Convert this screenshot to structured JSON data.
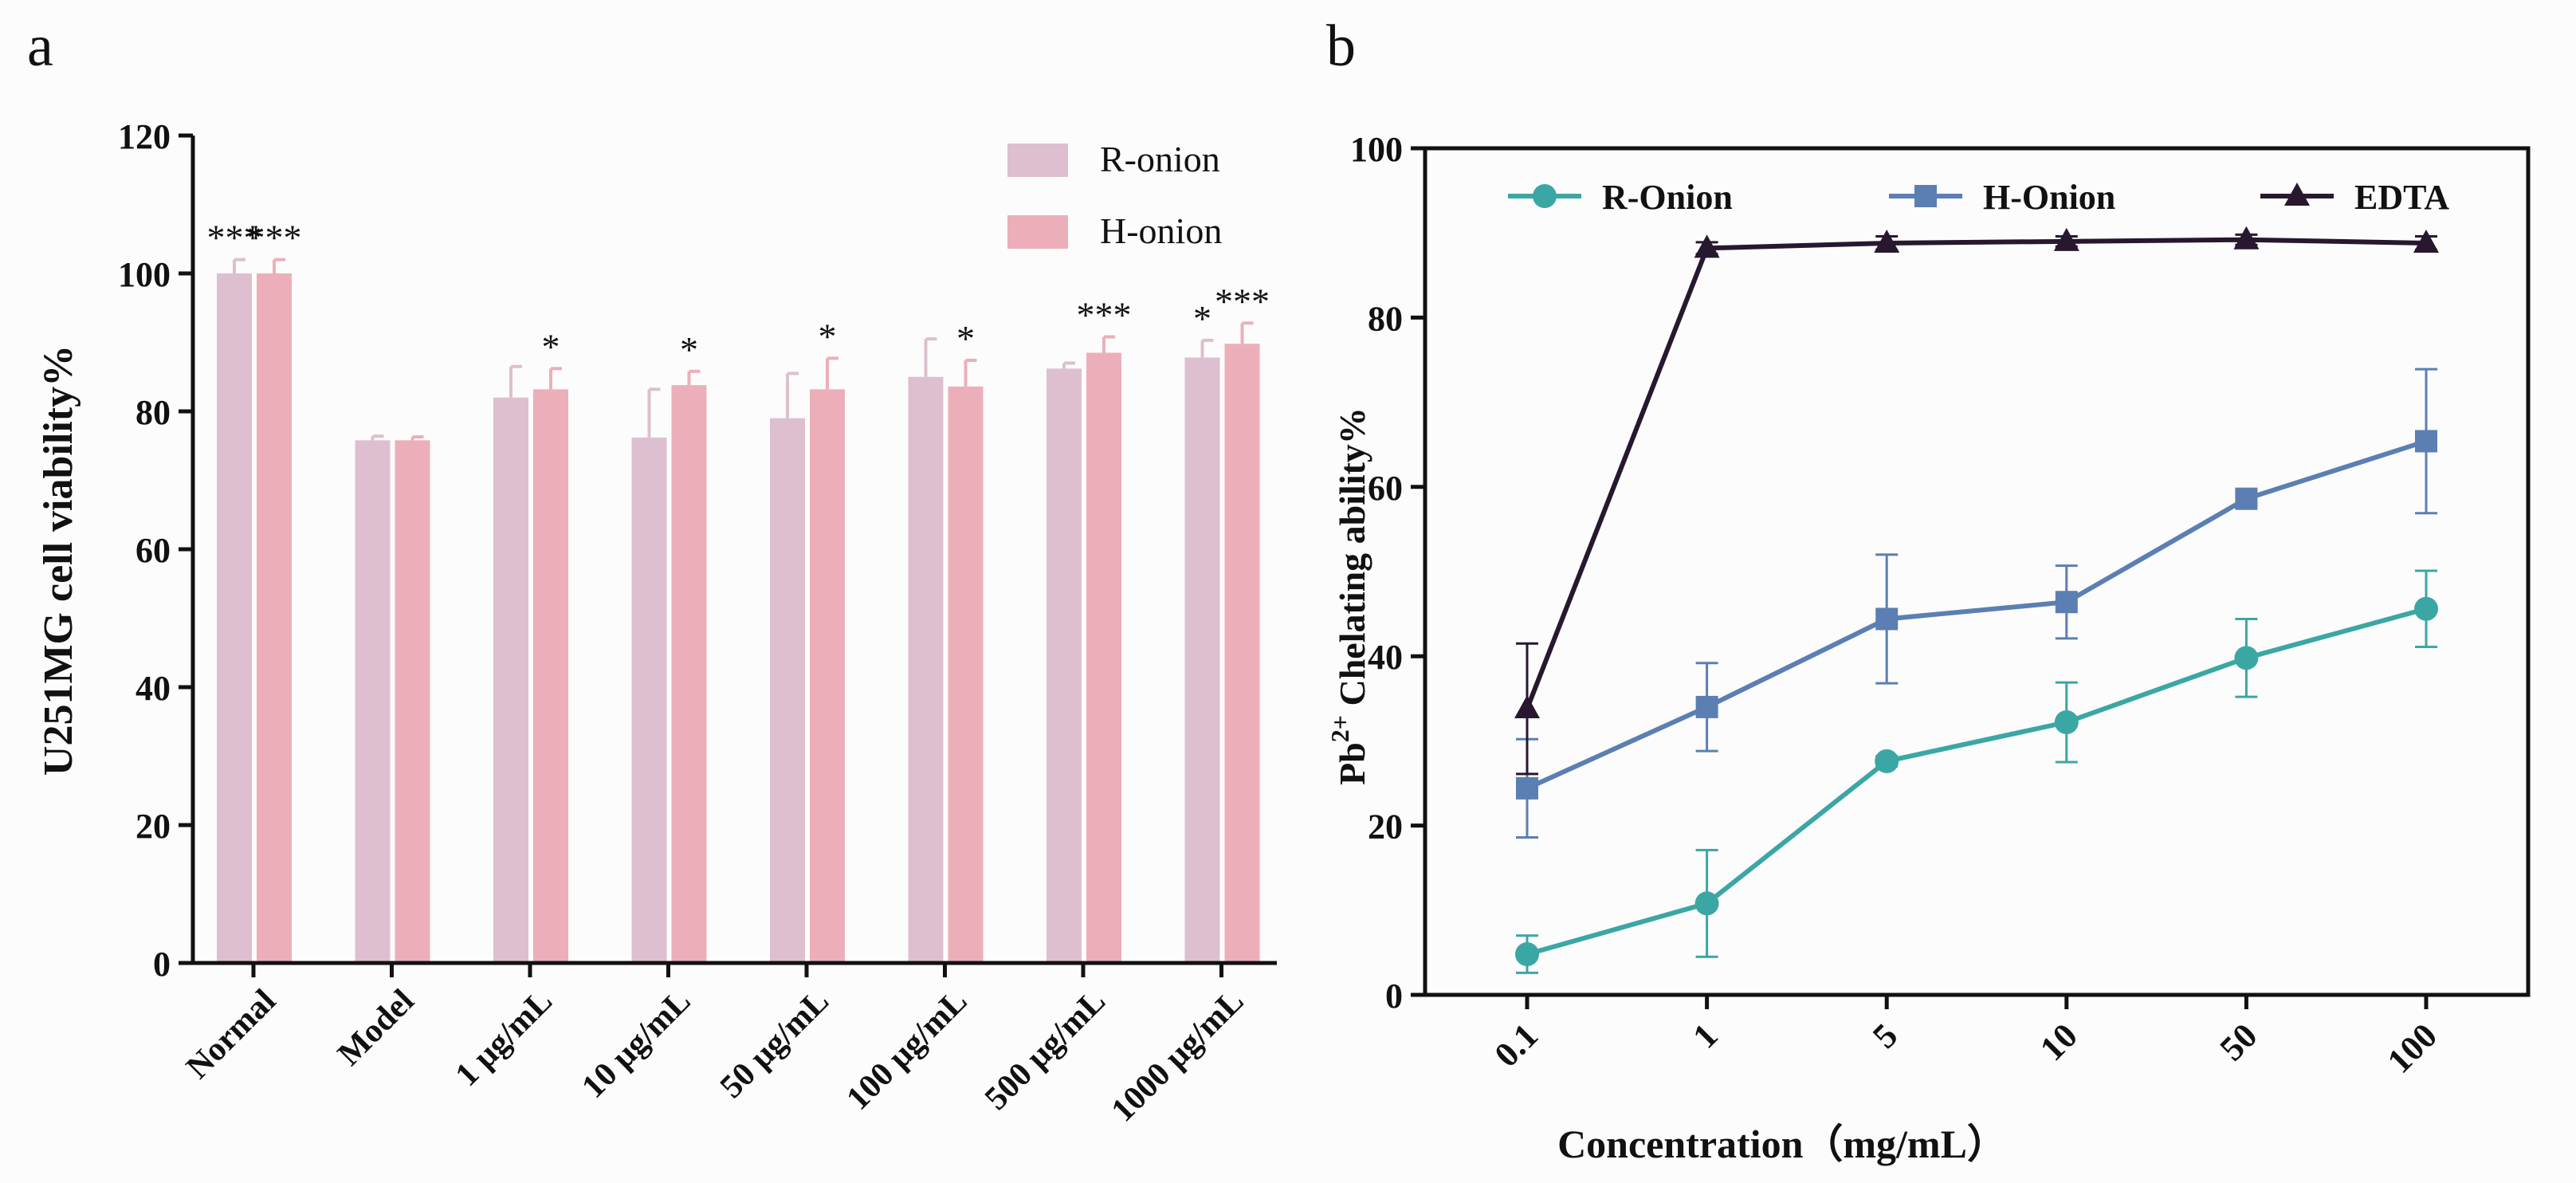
{
  "colors": {
    "background": "#fdfcfc",
    "axis": "#111111",
    "r_onion_bar": "#ddbfcf",
    "h_onion_bar": "#ecafb9",
    "r_onion_line": "#3ba7a4",
    "h_onion_line": "#5b7fb2",
    "edta_line": "#27182f"
  },
  "chart_data": [
    {
      "panel_label": "a",
      "type": "bar",
      "title": "",
      "xlabel": "",
      "ylabel": "U251MG cell viability%",
      "ylim": [
        0,
        120
      ],
      "yticks": [
        0,
        20,
        40,
        60,
        80,
        100,
        120
      ],
      "categories": [
        "Normal",
        "Model",
        "1 μg/mL",
        "10 μg/mL",
        "50 μg/mL",
        "100 μg/mL",
        "500 μg/mL",
        "1000 μg/mL"
      ],
      "legend": {
        "position": "top-right",
        "entries": [
          "R-onion",
          "H-onion"
        ]
      },
      "series": [
        {
          "name": "R-onion",
          "values": [
            100,
            75.8,
            82,
            76.2,
            79,
            85,
            86.2,
            87.8
          ],
          "errors": [
            2,
            0.6,
            4.5,
            7,
            6.5,
            5.5,
            0.8,
            2.5
          ],
          "significance": [
            "***",
            "",
            "",
            "",
            "",
            "",
            "",
            "*"
          ]
        },
        {
          "name": "H-onion",
          "values": [
            100,
            75.8,
            83.2,
            83.8,
            83.2,
            83.6,
            88.5,
            89.8
          ],
          "errors": [
            2,
            0.5,
            3,
            2,
            4.5,
            3.8,
            2.3,
            3
          ],
          "significance": [
            "***",
            "",
            "*",
            "*",
            "*",
            "*",
            "***",
            "***"
          ]
        }
      ]
    },
    {
      "panel_label": "b",
      "type": "line",
      "title": "",
      "xlabel": "Concentration（mg/mL）",
      "ylabel_main": "Pb",
      "ylabel_sup": "2+",
      "ylabel_rest": " Chelating ability%",
      "ylim": [
        0,
        100
      ],
      "yticks": [
        0,
        20,
        40,
        60,
        80,
        100
      ],
      "x": [
        "0.1",
        "1",
        "5",
        "10",
        "50",
        "100"
      ],
      "legend": {
        "position": "top",
        "entries": [
          "R-Onion",
          "H-Onion",
          "EDTA"
        ]
      },
      "series": [
        {
          "name": "R-Onion",
          "marker": "circle",
          "values": [
            4.8,
            10.8,
            27.6,
            32.2,
            39.8,
            45.6
          ],
          "errors": [
            2.2,
            6.3,
            0.6,
            4.7,
            4.6,
            4.5
          ]
        },
        {
          "name": "H-Onion",
          "marker": "square",
          "values": [
            24.4,
            34,
            44.4,
            46.4,
            58.6,
            65.4
          ],
          "errors": [
            5.8,
            5.2,
            7.6,
            4.3,
            0.6,
            8.5
          ]
        },
        {
          "name": "EDTA",
          "marker": "triangle",
          "values": [
            33.8,
            88.2,
            88.8,
            89,
            89.2,
            88.8
          ],
          "errors": [
            7.7,
            0.7,
            0.8,
            0.6,
            0.6,
            0.8
          ]
        }
      ]
    }
  ]
}
